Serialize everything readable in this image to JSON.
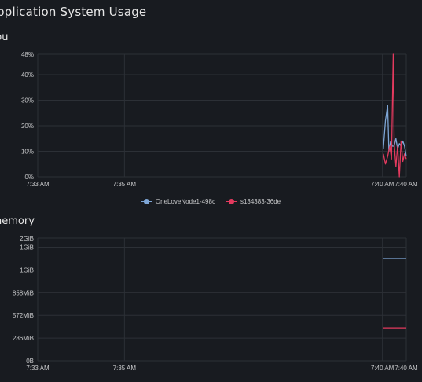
{
  "page": {
    "title": "pplication System Usage"
  },
  "colors": {
    "background": "#181b20",
    "grid": "#2c3036",
    "series_blue": "#7ea6d6",
    "series_red": "#e33a5e"
  },
  "sections": {
    "cpu": {
      "title": "pu"
    },
    "memory": {
      "title": "nemory"
    }
  },
  "legend": {
    "items": [
      {
        "label": "OneLoveNode1-498c",
        "color": "#7ea6d6"
      },
      {
        "label": "s134383-36de",
        "color": "#e33a5e"
      }
    ]
  },
  "chart_data": [
    {
      "type": "line",
      "name": "cpu",
      "y_unit": "%",
      "ylim": [
        0,
        48
      ],
      "y_ticks": [
        0,
        10,
        20,
        30,
        40,
        48
      ],
      "y_tick_labels": [
        "0%",
        "10%",
        "20%",
        "30%",
        "40%",
        "48%"
      ],
      "x_tick_labels": [
        "7:33 AM",
        "7:35 AM",
        "7:40 AM",
        "7:40 AM"
      ],
      "x_ticks_minutes": [
        0,
        2,
        7.95,
        8.5
      ],
      "xlim_minutes": [
        0,
        8.5
      ],
      "grid": true,
      "legend_position": "bottom-center",
      "series": [
        {
          "name": "OneLoveNode1-498c",
          "color": "#7ea6d6",
          "x_minutes": [
            7.97,
            8.02,
            8.07,
            8.1,
            8.14,
            8.18,
            8.22,
            8.26,
            8.3,
            8.34,
            8.38,
            8.42,
            8.46,
            8.5
          ],
          "values": [
            11,
            22,
            28,
            10,
            14,
            12,
            12,
            15,
            11,
            13,
            12,
            14,
            12,
            8
          ]
        },
        {
          "name": "s134383-36de",
          "color": "#e33a5e",
          "x_minutes": [
            7.97,
            8.02,
            8.07,
            8.12,
            8.16,
            8.2,
            8.22,
            8.26,
            8.3,
            8.34,
            8.38,
            8.42,
            8.46,
            8.5
          ],
          "values": [
            9,
            5,
            8,
            12,
            7,
            48,
            13,
            4,
            12,
            0,
            14,
            6,
            9,
            7
          ]
        }
      ]
    },
    {
      "type": "line",
      "name": "memory",
      "y_ticks_pos": [
        0,
        1,
        2,
        3,
        4,
        5,
        5.4
      ],
      "y_tick_labels": [
        "0B",
        "286MiB",
        "572MiB",
        "858MiB",
        "1GiB",
        "1GiB",
        "2GiB"
      ],
      "x_tick_labels": [
        "7:33 AM",
        "7:35 AM",
        "7:40 AM",
        "7:40 AM"
      ],
      "x_ticks_minutes": [
        0,
        2,
        7.95,
        8.5
      ],
      "xlim_minutes": [
        0,
        8.5
      ],
      "grid": true,
      "series": [
        {
          "name": "OneLoveNode1-498c",
          "color": "#7ea6d6",
          "x_minutes": [
            7.97,
            8.5
          ],
          "values_pos": [
            4.5,
            4.5
          ]
        },
        {
          "name": "s134383-36de",
          "color": "#e33a5e",
          "x_minutes": [
            7.97,
            8.5
          ],
          "values_pos": [
            1.45,
            1.45
          ]
        }
      ]
    }
  ]
}
